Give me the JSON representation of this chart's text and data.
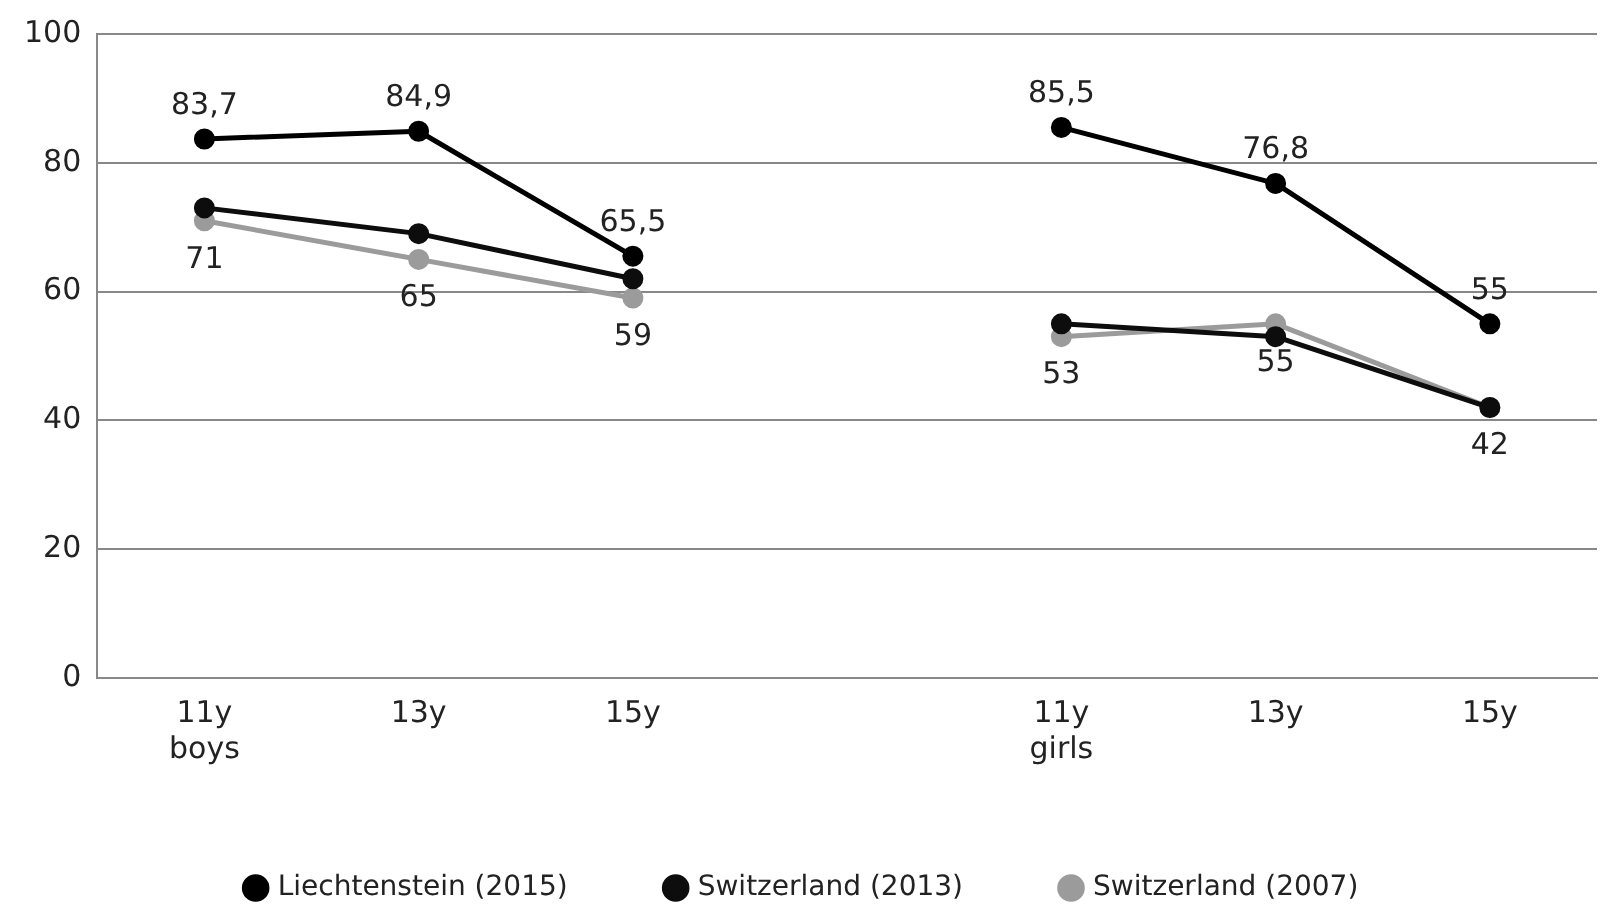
{
  "chart_data": {
    "type": "line",
    "categories": [
      "11y\nboys",
      "13y",
      "15y",
      null,
      "11y\ngirls",
      "13y",
      "15y"
    ],
    "series": [
      {
        "name": "Liechtenstein (2015)",
        "color": "#000000",
        "values": [
          83.7,
          84.9,
          65.5,
          null,
          85.5,
          76.8,
          55
        ],
        "value_labels": [
          "83,7",
          "84,9",
          "65,5",
          null,
          "85,5",
          "76,8",
          "55"
        ]
      },
      {
        "name": "Switzerland (2013)",
        "color": "#0d0d0d",
        "values": [
          73,
          69,
          62,
          null,
          55,
          53,
          42
        ]
      },
      {
        "name": "Switzerland (2007)",
        "color": "#9b9b9b",
        "values": [
          71,
          65,
          59,
          null,
          53,
          55,
          42
        ],
        "value_labels": [
          "71",
          "65",
          "59",
          null,
          "53",
          "55",
          "42"
        ]
      }
    ],
    "ylim": [
      0,
      100
    ],
    "yticks": [
      0,
      20,
      40,
      60,
      80,
      100
    ],
    "grid": "y",
    "legend": "bottom",
    "marker": "circle",
    "line_style": "solid"
  }
}
